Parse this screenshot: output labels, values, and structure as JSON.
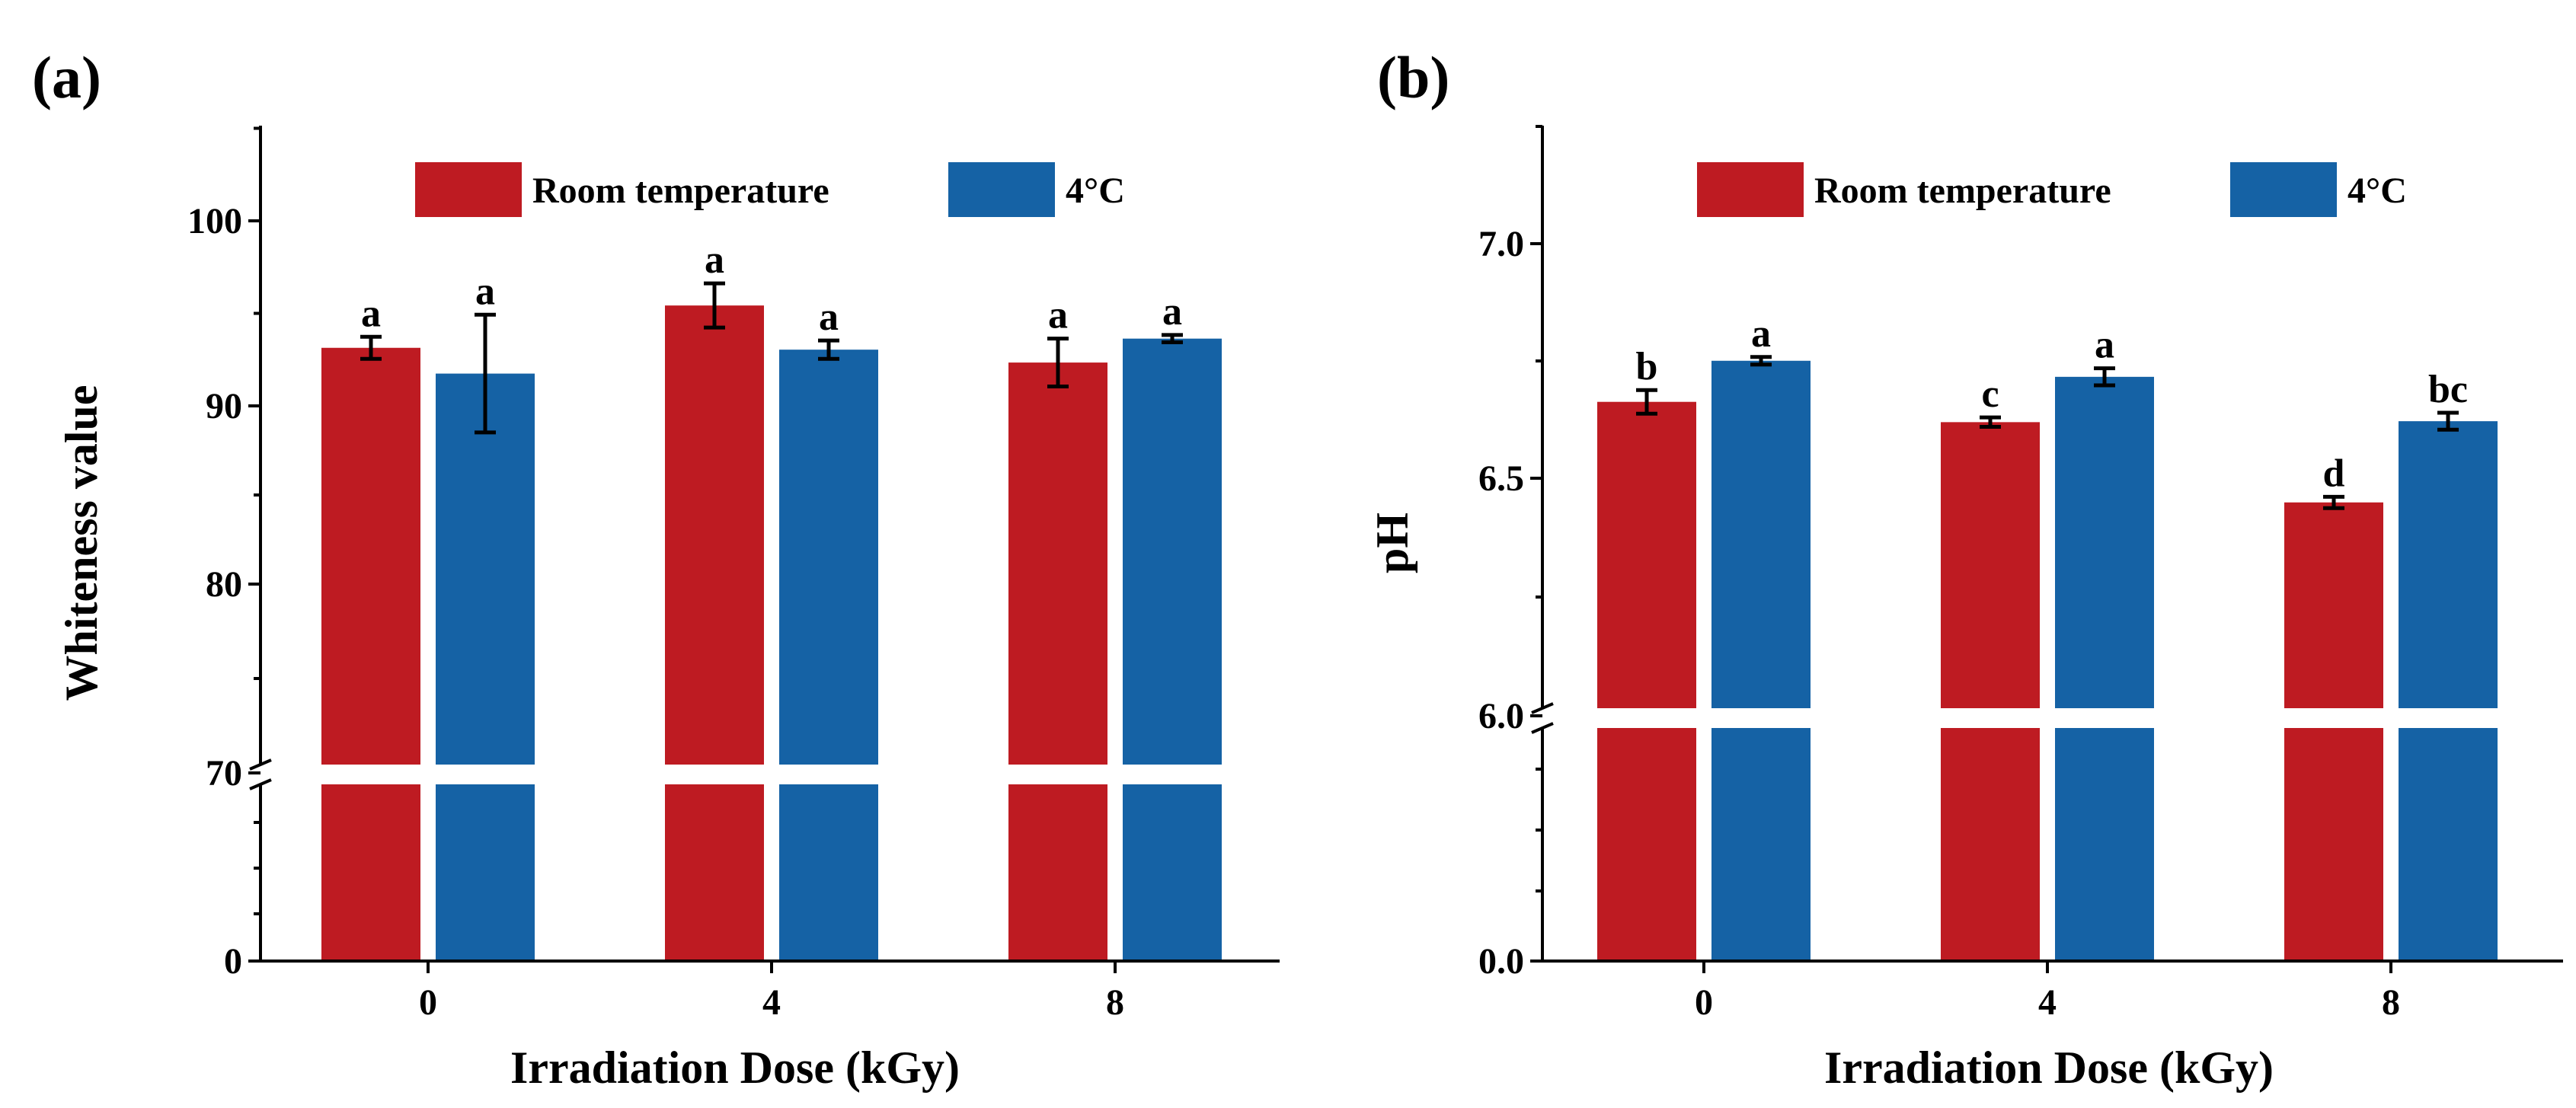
{
  "colors": {
    "room_temperature": "#BE1B22",
    "cold": "#1562A5",
    "axis": "#000000",
    "background": "#FFFFFF"
  },
  "chart_data": [
    {
      "type": "bar",
      "panel_label": "(a)",
      "xlabel": "Irradiation Dose (kGy)",
      "ylabel": "Whiteness value",
      "categories": [
        "0",
        "4",
        "8"
      ],
      "axis_break": {
        "lower_range": [
          0,
          70
        ],
        "upper_range": [
          70,
          105
        ]
      },
      "y_ticks": [
        "0",
        "70",
        "80",
        "90",
        "100"
      ],
      "legend_placement": "top",
      "series": [
        {
          "name": "Room temperature",
          "color": "#BE1B22",
          "values": [
            93.1,
            95.4,
            92.3
          ],
          "errors": [
            0.6,
            1.2,
            1.3
          ],
          "labels": [
            "a",
            "a",
            "a"
          ]
        },
        {
          "name": "4°C",
          "color": "#1562A5",
          "values": [
            91.7,
            93.0,
            93.6
          ],
          "errors": [
            3.2,
            0.5,
            0.2
          ],
          "labels": [
            "a",
            "a",
            "a"
          ]
        }
      ]
    },
    {
      "type": "bar",
      "panel_label": "(b)",
      "xlabel": "Irradiation Dose (kGy)",
      "ylabel": "pH",
      "categories": [
        "0",
        "4",
        "8"
      ],
      "axis_break": {
        "lower_range": [
          0,
          6.0
        ],
        "upper_range": [
          6.0,
          7.25
        ]
      },
      "y_ticks": [
        "0.0",
        "6.0",
        "6.5",
        "7.0"
      ],
      "legend_placement": "top",
      "series": [
        {
          "name": "Room temperature",
          "color": "#BE1B22",
          "values": [
            6.665,
            6.622,
            6.452
          ],
          "errors": [
            0.025,
            0.01,
            0.012
          ],
          "labels": [
            "b",
            "c",
            "d"
          ]
        },
        {
          "name": "4°C",
          "color": "#1562A5",
          "values": [
            6.752,
            6.718,
            6.624
          ],
          "errors": [
            0.008,
            0.018,
            0.018
          ],
          "labels": [
            "a",
            "a",
            "bc"
          ]
        }
      ]
    }
  ]
}
